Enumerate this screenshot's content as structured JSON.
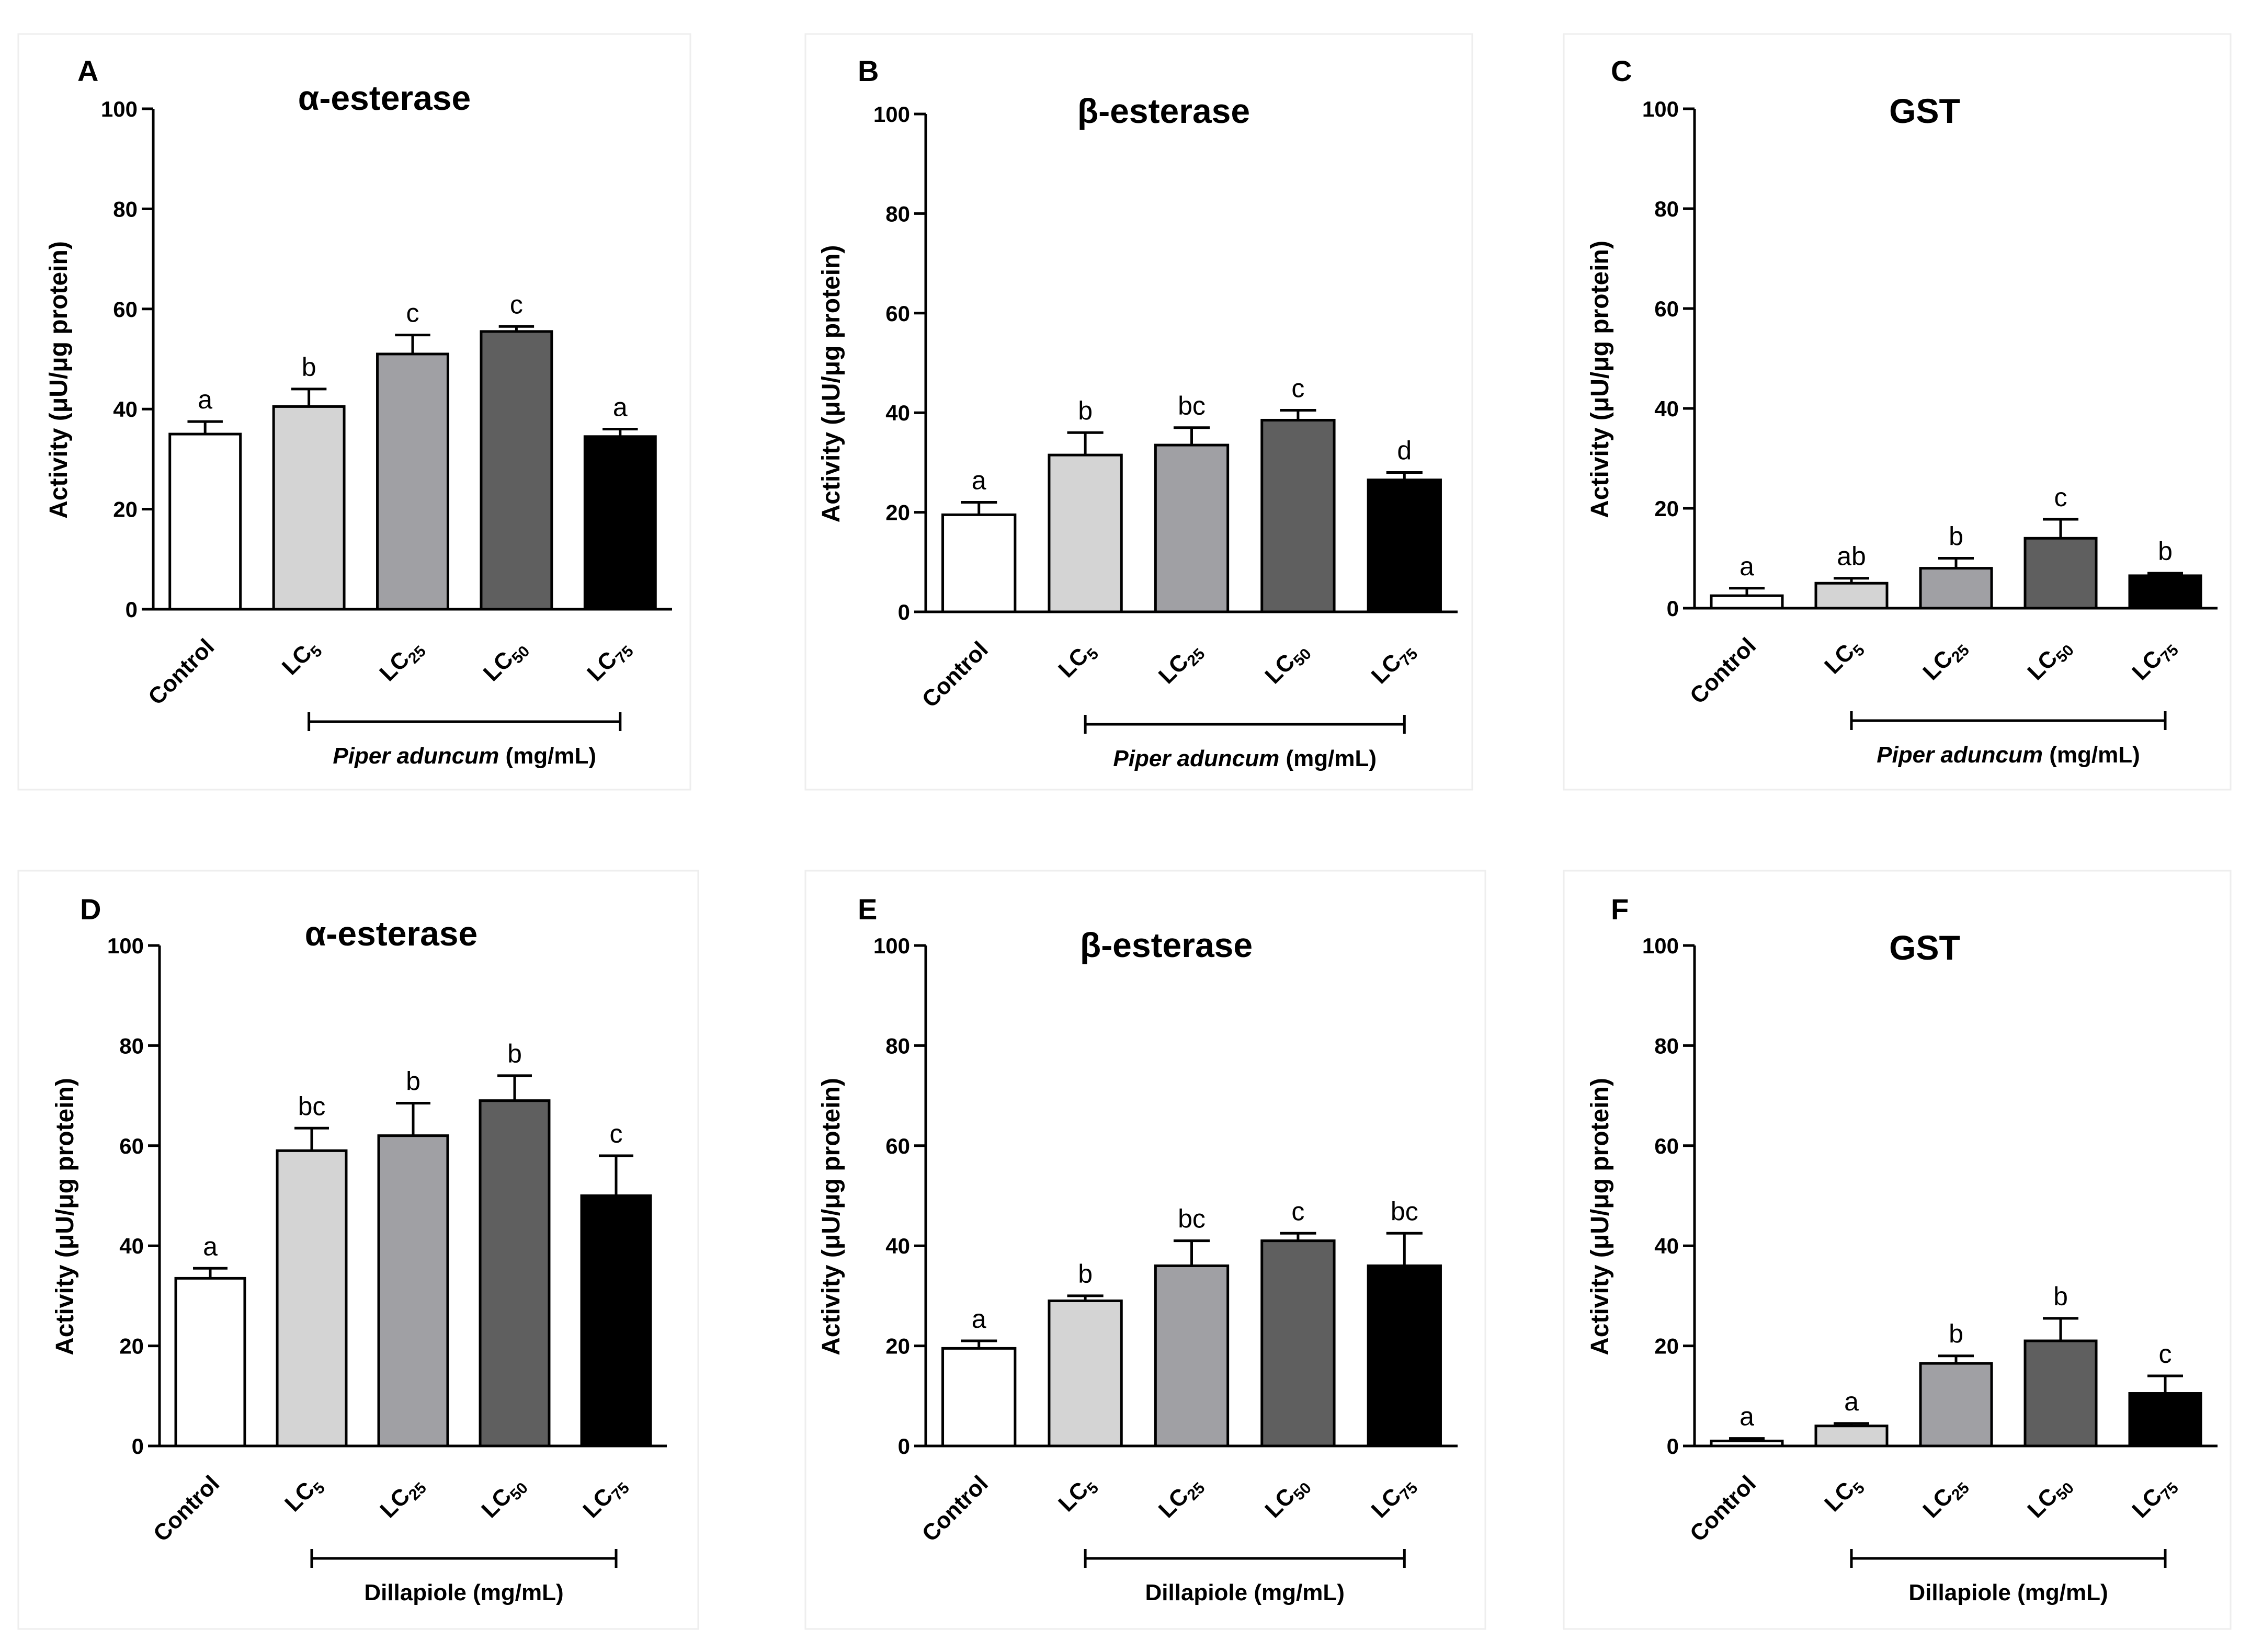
{
  "figure": {
    "series_names": [
      "Control",
      "LC5",
      "LC25",
      "LC50",
      "LC75"
    ],
    "bar_colors": [
      "#ffffff",
      "#d4d4d4",
      "#a0a0a4",
      "#5f5f5f",
      "#000000"
    ],
    "axis_color": "#000000",
    "panel_border_color": "#eeeeee"
  },
  "chart_data": [
    {
      "type": "bar",
      "panel_label": "A",
      "title": "α-esterase",
      "ylabel": "Activity (μU/μg protein)",
      "yticks": [
        "0",
        "20",
        "40",
        "60",
        "80",
        "100"
      ],
      "ylim": [
        0,
        100
      ],
      "categories": [
        {
          "base": "Control",
          "sub": ""
        },
        {
          "base": "LC",
          "sub": "5"
        },
        {
          "base": "LC",
          "sub": "25"
        },
        {
          "base": "LC",
          "sub": "50"
        },
        {
          "base": "LC",
          "sub": "75"
        }
      ],
      "values": [
        35,
        40.5,
        51,
        55.5,
        34.5
      ],
      "errors": [
        2.5,
        3.5,
        3.8,
        1.0,
        1.5
      ],
      "letters": [
        "a",
        "b",
        "c",
        "c",
        "a"
      ],
      "treatment_label": {
        "name": "Piper aduncum",
        "unit": " (mg/mL)",
        "italic": true
      }
    },
    {
      "type": "bar",
      "panel_label": "B",
      "title": "β-esterase",
      "ylabel": "Activity (μU/μg protein)",
      "yticks": [
        "0",
        "20",
        "40",
        "60",
        "80",
        "100"
      ],
      "ylim": [
        0,
        100
      ],
      "categories": [
        {
          "base": "Control",
          "sub": ""
        },
        {
          "base": "LC",
          "sub": "5"
        },
        {
          "base": "LC",
          "sub": "25"
        },
        {
          "base": "LC",
          "sub": "50"
        },
        {
          "base": "LC",
          "sub": "75"
        }
      ],
      "values": [
        19.5,
        31.5,
        33.5,
        38.5,
        26.5
      ],
      "errors": [
        2.5,
        4.5,
        3.5,
        2.0,
        1.5
      ],
      "letters": [
        "a",
        "b",
        "bc",
        "c",
        "d"
      ],
      "treatment_label": {
        "name": "Piper aduncum",
        "unit": " (mg/mL)",
        "italic": true
      }
    },
    {
      "type": "bar",
      "panel_label": "C",
      "title": "GST",
      "ylabel": "Activity (μU/μg protein)",
      "yticks": [
        "0",
        "20",
        "40",
        "60",
        "80",
        "100"
      ],
      "ylim": [
        0,
        100
      ],
      "categories": [
        {
          "base": "Control",
          "sub": ""
        },
        {
          "base": "LC",
          "sub": "5"
        },
        {
          "base": "LC",
          "sub": "25"
        },
        {
          "base": "LC",
          "sub": "50"
        },
        {
          "base": "LC",
          "sub": "75"
        }
      ],
      "values": [
        2.5,
        5,
        8,
        14,
        6.5
      ],
      "errors": [
        1.5,
        1.0,
        2.0,
        3.8,
        0.5
      ],
      "letters": [
        "a",
        "ab",
        "b",
        "c",
        "b"
      ],
      "treatment_label": {
        "name": "Piper aduncum",
        "unit": " (mg/mL)",
        "italic": true
      }
    },
    {
      "type": "bar",
      "panel_label": "D",
      "title": "α-esterase",
      "ylabel": "Activity (μU/μg protein)",
      "yticks": [
        "0",
        "20",
        "40",
        "60",
        "80",
        "100"
      ],
      "ylim": [
        0,
        100
      ],
      "categories": [
        {
          "base": "Control",
          "sub": ""
        },
        {
          "base": "LC",
          "sub": "5"
        },
        {
          "base": "LC",
          "sub": "25"
        },
        {
          "base": "LC",
          "sub": "50"
        },
        {
          "base": "LC",
          "sub": "75"
        }
      ],
      "values": [
        33.5,
        59,
        62,
        69,
        50
      ],
      "errors": [
        2.0,
        4.5,
        6.5,
        5.0,
        8.0
      ],
      "letters": [
        "a",
        "bc",
        "b",
        "b",
        "c"
      ],
      "treatment_label": {
        "name": "Dillapiole",
        "unit": " (mg/mL)",
        "italic": false
      }
    },
    {
      "type": "bar",
      "panel_label": "E",
      "title": "β-esterase",
      "ylabel": "Activity (μU/μg protein)",
      "yticks": [
        "0",
        "20",
        "40",
        "60",
        "80",
        "100"
      ],
      "ylim": [
        0,
        100
      ],
      "categories": [
        {
          "base": "Control",
          "sub": ""
        },
        {
          "base": "LC",
          "sub": "5"
        },
        {
          "base": "LC",
          "sub": "25"
        },
        {
          "base": "LC",
          "sub": "50"
        },
        {
          "base": "LC",
          "sub": "75"
        }
      ],
      "values": [
        19.5,
        29,
        36,
        41,
        36
      ],
      "errors": [
        1.5,
        1.0,
        5.0,
        1.5,
        6.5
      ],
      "letters": [
        "a",
        "b",
        "bc",
        "c",
        "bc"
      ],
      "treatment_label": {
        "name": "Dillapiole",
        "unit": " (mg/mL)",
        "italic": false
      }
    },
    {
      "type": "bar",
      "panel_label": "F",
      "title": "GST",
      "ylabel": "Activity (μU/μg protein)",
      "yticks": [
        "0",
        "20",
        "40",
        "60",
        "80",
        "100"
      ],
      "ylim": [
        0,
        100
      ],
      "categories": [
        {
          "base": "Control",
          "sub": ""
        },
        {
          "base": "LC",
          "sub": "5"
        },
        {
          "base": "LC",
          "sub": "25"
        },
        {
          "base": "LC",
          "sub": "50"
        },
        {
          "base": "LC",
          "sub": "75"
        }
      ],
      "values": [
        1,
        4,
        16.5,
        21,
        10.5
      ],
      "errors": [
        0.5,
        0.5,
        1.5,
        4.5,
        3.5
      ],
      "letters": [
        "a",
        "a",
        "b",
        "b",
        "c"
      ],
      "treatment_label": {
        "name": "Dillapiole",
        "unit": " (mg/mL)",
        "italic": false
      }
    }
  ]
}
